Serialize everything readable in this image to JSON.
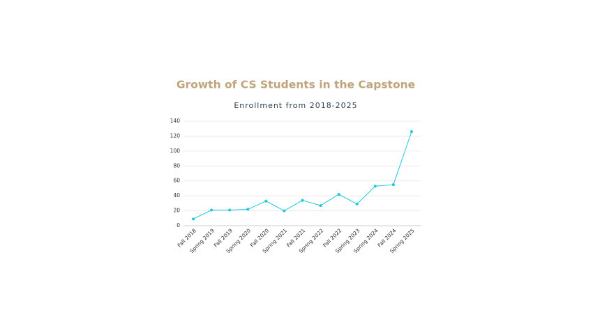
{
  "chart_data": {
    "type": "line",
    "title": "Growth of CS Students in the Capstone",
    "subtitle": "Enrollment from 2018-2025",
    "categories": [
      "Fall 2018",
      "Spring 2019",
      "Fall 2019",
      "Spring 2020",
      "Fall 2020",
      "Spring 2021",
      "Fall 2021",
      "Spring 2022",
      "Fall 2022",
      "Spring 2023",
      "Spring 2024",
      "Fall 2024",
      "Spring 2025"
    ],
    "values": [
      9,
      21,
      21,
      22,
      33,
      20,
      34,
      27,
      42,
      29,
      53,
      55,
      126
    ],
    "color": "#1ec8dc",
    "ylim": [
      0,
      140
    ],
    "yticks": [
      0,
      20,
      40,
      60,
      80,
      100,
      120,
      140
    ],
    "grid": true
  }
}
